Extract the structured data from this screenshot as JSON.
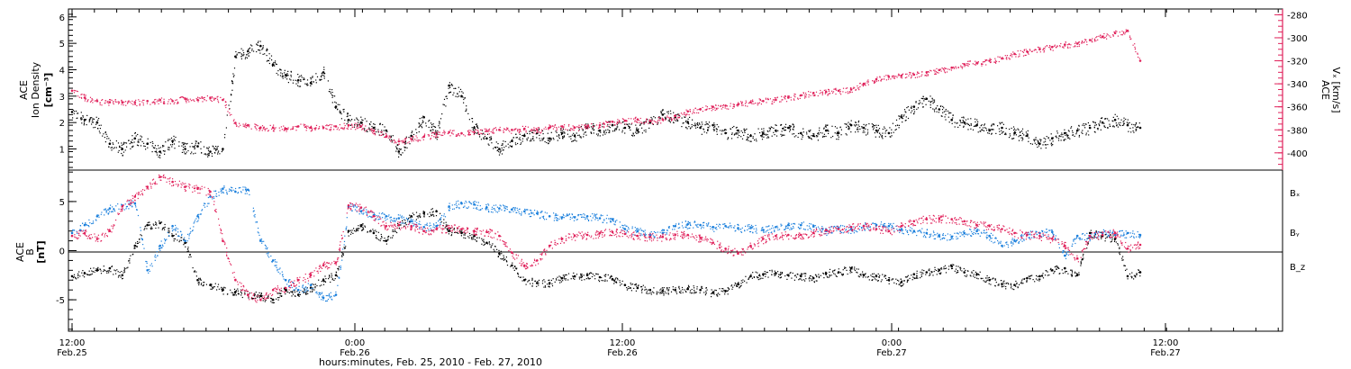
{
  "chart_data": [
    {
      "type": "scatter",
      "panel": "top",
      "ylabel_lines": [
        "ACE",
        "Ion Density",
        "[cm⁻³]"
      ],
      "y2label_lines": [
        "ACE",
        "Vₓ [km/s]"
      ],
      "ylim": [
        0.2,
        6.3
      ],
      "y2lim": [
        -415,
        -275
      ],
      "yticks": [
        "1",
        "2",
        "3",
        "4",
        "5",
        "6"
      ],
      "y2ticks": [
        "-280",
        "-300",
        "-320",
        "-340",
        "-360",
        "-380",
        "-400"
      ],
      "series": [
        {
          "name": "Ion Density",
          "color": "#000000",
          "axis": "left",
          "x": [
            0,
            1,
            2,
            3,
            4,
            5,
            6,
            7,
            8,
            9,
            10,
            11,
            12,
            13,
            14,
            15,
            16,
            17,
            18,
            19,
            20,
            21,
            22,
            23,
            24,
            25,
            26,
            27,
            28,
            29,
            30,
            31,
            32,
            33,
            34,
            35,
            36,
            37,
            38,
            39,
            40,
            41,
            42,
            43,
            44,
            45,
            46,
            47,
            48,
            49,
            50,
            51,
            52,
            53,
            54,
            55,
            56,
            57,
            58,
            59,
            60,
            61,
            62,
            63,
            64,
            65,
            66,
            67,
            68,
            69,
            70,
            71,
            72,
            73,
            74,
            75,
            76,
            77,
            78,
            79,
            80,
            81,
            82,
            83,
            84,
            85
          ],
          "values": [
            2.4,
            2.1,
            2.0,
            1.2,
            1.0,
            1.4,
            1.2,
            0.9,
            1.3,
            1.0,
            1.1,
            0.9,
            1.0,
            4.5,
            4.7,
            4.9,
            4.2,
            3.8,
            3.6,
            3.5,
            3.9,
            2.6,
            2.1,
            2.0,
            1.8,
            1.7,
            0.9,
            1.5,
            2.2,
            1.6,
            3.4,
            3.0,
            1.8,
            1.4,
            1.0,
            1.3,
            1.5,
            1.6,
            1.4,
            1.6,
            1.5,
            1.8,
            1.7,
            1.9,
            1.8,
            1.7,
            2.0,
            2.3,
            2.2,
            2.0,
            1.8,
            1.9,
            1.6,
            1.7,
            1.5,
            1.6,
            1.7,
            1.8,
            1.6,
            1.5,
            1.7,
            1.6,
            1.9,
            1.8,
            1.7,
            1.6,
            2.2,
            2.6,
            2.9,
            2.5,
            2.1,
            2.0,
            1.9,
            1.7,
            1.8,
            1.6,
            1.5,
            1.2,
            1.4,
            1.6,
            1.7,
            1.8,
            2.0,
            2.1,
            1.9,
            1.8
          ]
        },
        {
          "name": "Vx",
          "color": "#e0205a",
          "axis": "right",
          "x": [
            0,
            1,
            2,
            3,
            4,
            5,
            6,
            7,
            8,
            9,
            10,
            11,
            12,
            13,
            14,
            15,
            16,
            17,
            18,
            19,
            20,
            21,
            22,
            23,
            24,
            25,
            26,
            27,
            28,
            29,
            30,
            31,
            32,
            33,
            34,
            35,
            36,
            37,
            38,
            39,
            40,
            41,
            42,
            43,
            44,
            45,
            46,
            47,
            48,
            49,
            50,
            51,
            52,
            53,
            54,
            55,
            56,
            57,
            58,
            59,
            60,
            61,
            62,
            63,
            64,
            65,
            66,
            67,
            68,
            69,
            70,
            71,
            72,
            73,
            74,
            75,
            76,
            77,
            78,
            79,
            80,
            81,
            82,
            83,
            84,
            85
          ],
          "values": [
            -346,
            -352,
            -355,
            -356,
            -356,
            -356,
            -355,
            -354,
            -355,
            -353,
            -354,
            -352,
            -354,
            -374,
            -376,
            -378,
            -378,
            -379,
            -377,
            -378,
            -378,
            -377,
            -376,
            -377,
            -381,
            -386,
            -390,
            -388,
            -386,
            -384,
            -382,
            -383,
            -382,
            -381,
            -380,
            -380,
            -379,
            -380,
            -378,
            -377,
            -378,
            -377,
            -376,
            -373,
            -372,
            -371,
            -372,
            -371,
            -368,
            -364,
            -362,
            -360,
            -359,
            -358,
            -356,
            -355,
            -354,
            -352,
            -350,
            -348,
            -347,
            -346,
            -345,
            -340,
            -336,
            -334,
            -333,
            -332,
            -330,
            -328,
            -326,
            -323,
            -322,
            -320,
            -318,
            -314,
            -312,
            -310,
            -308,
            -306,
            -305,
            -302,
            -299,
            -296,
            -294,
            -320
          ]
        }
      ]
    },
    {
      "type": "scatter",
      "panel": "bottom",
      "ylabel_lines": [
        "ACE",
        "B",
        "[nT]"
      ],
      "ylim": [
        -8.2,
        8.2
      ],
      "yticks": [
        "5",
        "0",
        "-5"
      ],
      "legend": [
        "Bₓ",
        "Bᵧ",
        "B_z"
      ],
      "series": [
        {
          "name": "Bx",
          "color": "#000000",
          "x": [
            0,
            1,
            2,
            3,
            4,
            5,
            6,
            7,
            8,
            9,
            10,
            11,
            12,
            13,
            14,
            15,
            16,
            17,
            18,
            19,
            20,
            21,
            22,
            23,
            24,
            25,
            26,
            27,
            28,
            29,
            30,
            31,
            32,
            33,
            34,
            35,
            36,
            37,
            38,
            39,
            40,
            41,
            42,
            43,
            44,
            45,
            46,
            47,
            48,
            49,
            50,
            51,
            52,
            53,
            54,
            55,
            56,
            57,
            58,
            59,
            60,
            61,
            62,
            63,
            64,
            65,
            66,
            67,
            68,
            69,
            70,
            71,
            72,
            73,
            74,
            75,
            76,
            77,
            78,
            79,
            80,
            81,
            82,
            83,
            84,
            85
          ],
          "values": [
            -2.6,
            -2.3,
            -2.0,
            -1.8,
            -2.5,
            0.5,
            2.6,
            2.8,
            1.5,
            0.8,
            -3.0,
            -3.5,
            -4.0,
            -4.2,
            -4.5,
            -4.6,
            -5.0,
            -4.0,
            -4.5,
            -3.8,
            -3.0,
            -2.5,
            2.0,
            2.5,
            1.8,
            1.0,
            2.6,
            3.5,
            3.8,
            4.0,
            2.0,
            1.8,
            1.5,
            0.8,
            -0.3,
            -1.5,
            -3.0,
            -3.3,
            -3.3,
            -2.8,
            -2.6,
            -2.5,
            -2.7,
            -2.9,
            -3.5,
            -3.8,
            -4.0,
            -4.1,
            -4.0,
            -3.9,
            -4.0,
            -4.3,
            -4.1,
            -3.4,
            -2.6,
            -2.4,
            -2.3,
            -2.5,
            -2.6,
            -2.8,
            -2.3,
            -2.2,
            -1.8,
            -2.5,
            -2.6,
            -3.0,
            -3.2,
            -2.4,
            -2.2,
            -2.0,
            -1.6,
            -2.2,
            -2.4,
            -3.0,
            -3.4,
            -3.5,
            -2.8,
            -2.6,
            -2.0,
            -1.8,
            -2.5,
            1.8,
            1.5,
            1.2,
            -2.6,
            -2.2
          ]
        },
        {
          "name": "By",
          "color": "#1a7fdc",
          "x": [
            0,
            1,
            2,
            3,
            4,
            5,
            6,
            7,
            8,
            9,
            10,
            11,
            12,
            13,
            14,
            15,
            16,
            17,
            18,
            19,
            20,
            21,
            22,
            23,
            24,
            25,
            26,
            27,
            28,
            29,
            30,
            31,
            32,
            33,
            34,
            35,
            36,
            37,
            38,
            39,
            40,
            41,
            42,
            43,
            44,
            45,
            46,
            47,
            48,
            49,
            50,
            51,
            52,
            53,
            54,
            55,
            56,
            57,
            58,
            59,
            60,
            61,
            62,
            63,
            64,
            65,
            66,
            67,
            68,
            69,
            70,
            71,
            72,
            73,
            74,
            75,
            76,
            77,
            78,
            79,
            80,
            81,
            82,
            83,
            84,
            85
          ],
          "values": [
            1.8,
            2.6,
            3.5,
            4.3,
            4.6,
            4.8,
            -2.0,
            0.5,
            2.5,
            1.0,
            3.5,
            5.5,
            6.3,
            6.0,
            6.2,
            1.0,
            -1.0,
            -3.0,
            -4.0,
            -3.5,
            -4.8,
            -4.5,
            4.5,
            4.0,
            3.6,
            3.5,
            3.3,
            3.0,
            2.4,
            2.5,
            4.5,
            4.8,
            4.7,
            4.4,
            4.3,
            4.2,
            4.0,
            3.8,
            3.5,
            3.4,
            3.4,
            3.5,
            3.3,
            3.2,
            2.2,
            2.0,
            1.6,
            1.8,
            2.5,
            2.7,
            2.6,
            2.4,
            2.5,
            2.3,
            2.3,
            2.1,
            2.4,
            2.6,
            2.6,
            2.5,
            2.0,
            2.3,
            2.2,
            2.5,
            2.6,
            2.5,
            2.2,
            2.0,
            1.8,
            1.5,
            1.4,
            1.8,
            2.0,
            1.5,
            0.5,
            1.0,
            1.6,
            1.8,
            1.9,
            -0.5,
            1.5,
            1.4,
            1.8,
            1.6,
            1.8,
            1.6
          ]
        },
        {
          "name": "Bz",
          "color": "#e0205a",
          "x": [
            0,
            1,
            2,
            3,
            4,
            5,
            6,
            7,
            8,
            9,
            10,
            11,
            12,
            13,
            14,
            15,
            16,
            17,
            18,
            19,
            20,
            21,
            22,
            23,
            24,
            25,
            26,
            27,
            28,
            29,
            30,
            31,
            32,
            33,
            34,
            35,
            36,
            37,
            38,
            39,
            40,
            41,
            42,
            43,
            44,
            45,
            46,
            47,
            48,
            49,
            50,
            51,
            52,
            53,
            54,
            55,
            56,
            57,
            58,
            59,
            60,
            61,
            62,
            63,
            64,
            65,
            66,
            67,
            68,
            69,
            70,
            71,
            72,
            73,
            74,
            75,
            76,
            77,
            78,
            79,
            80,
            81,
            82,
            83,
            84,
            85
          ],
          "values": [
            1.5,
            1.8,
            1.2,
            2.0,
            4.5,
            5.5,
            6.5,
            7.5,
            7.0,
            6.5,
            6.3,
            6.0,
            1.0,
            -3.0,
            -4.5,
            -5.0,
            -4.0,
            -3.8,
            -3.0,
            -2.5,
            -1.5,
            -1.2,
            4.6,
            4.4,
            3.5,
            2.5,
            2.6,
            2.5,
            2.0,
            2.2,
            2.3,
            2.2,
            2.0,
            1.9,
            1.5,
            -0.2,
            -1.5,
            -1.0,
            0.5,
            1.2,
            1.5,
            1.6,
            1.8,
            1.9,
            1.7,
            1.5,
            1.4,
            1.4,
            1.6,
            1.6,
            1.3,
            0.8,
            0.2,
            -0.3,
            0.5,
            1.2,
            1.5,
            1.6,
            1.6,
            1.8,
            2.1,
            2.2,
            2.4,
            2.5,
            2.2,
            2.0,
            2.5,
            3.0,
            3.2,
            3.3,
            3.2,
            3.0,
            2.6,
            2.5,
            2.2,
            1.8,
            1.6,
            1.5,
            1.2,
            0.5,
            -0.8,
            1.5,
            1.6,
            1.8,
            0.2,
            0.6
          ]
        }
      ]
    }
  ],
  "x_axis": {
    "ticks": [
      {
        "time": "12:00",
        "date": "Feb.25"
      },
      {
        "time": "0:00",
        "date": "Feb.26"
      },
      {
        "time": "12:00",
        "date": "Feb.26"
      },
      {
        "time": "0:00",
        "date": "Feb.27"
      },
      {
        "time": "12:00",
        "date": "Feb.27"
      }
    ],
    "xlabel": "hours:minutes, Feb. 25, 2010 - Feb. 27, 2010"
  },
  "colors": {
    "black": "#000000",
    "blue": "#1a7fdc",
    "pink": "#e0205a"
  }
}
